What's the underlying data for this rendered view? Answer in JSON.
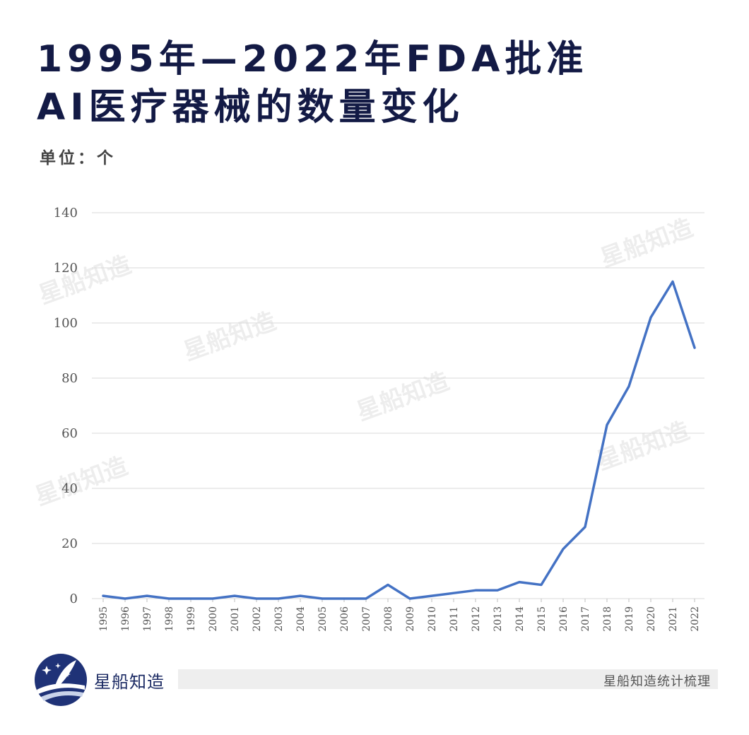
{
  "header": {
    "title_line1": "1995年—2022年FDA批准",
    "title_line2": "AI医疗器械的数量变化",
    "unit_label": "单位：个"
  },
  "watermark_text": "星船知造",
  "footer": {
    "brand": "星船知造",
    "note": "星船知造统计梳理"
  },
  "colors": {
    "title": "#131a45",
    "line": "#4472c4",
    "grid": "#d9d9d9",
    "logo": "#1f3277"
  },
  "chart_data": {
    "type": "line",
    "title": "1995年—2022年FDA批准AI医疗器械的数量变化",
    "xlabel": "",
    "ylabel": "",
    "unit": "个",
    "ylim": [
      0,
      140
    ],
    "yticks": [
      0,
      20,
      40,
      60,
      80,
      100,
      120,
      140
    ],
    "grid": true,
    "legend": "none",
    "categories": [
      "1995",
      "1996",
      "1997",
      "1998",
      "1999",
      "2000",
      "2001",
      "2002",
      "2003",
      "2004",
      "2005",
      "2006",
      "2007",
      "2008",
      "2009",
      "2010",
      "2011",
      "2012",
      "2013",
      "2014",
      "2015",
      "2016",
      "2017",
      "2018",
      "2019",
      "2020",
      "2021",
      "2022"
    ],
    "series": [
      {
        "values": [
          1,
          0,
          1,
          0,
          0,
          0,
          1,
          0,
          0,
          1,
          0,
          0,
          0,
          5,
          0,
          1,
          2,
          3,
          3,
          6,
          5,
          18,
          26,
          63,
          77,
          102,
          115,
          91
        ]
      }
    ]
  }
}
